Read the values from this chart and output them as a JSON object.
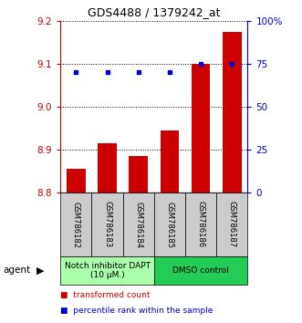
{
  "title": "GDS4488 / 1379242_at",
  "categories": [
    "GSM786182",
    "GSM786183",
    "GSM786184",
    "GSM786185",
    "GSM786186",
    "GSM786187"
  ],
  "bar_values": [
    8.855,
    8.915,
    8.885,
    8.945,
    9.1,
    9.175
  ],
  "dot_values": [
    70,
    70,
    70,
    70,
    75,
    75
  ],
  "ylim_left": [
    8.8,
    9.2
  ],
  "ylim_right": [
    0,
    100
  ],
  "yticks_left": [
    8.8,
    8.9,
    9.0,
    9.1,
    9.2
  ],
  "yticks_right": [
    0,
    25,
    50,
    75,
    100
  ],
  "ytick_labels_right": [
    "0",
    "25",
    "50",
    "75",
    "100%"
  ],
  "bar_color": "#cc0000",
  "dot_color": "#0000cc",
  "groups": [
    {
      "label": "Notch inhibitor DAPT\n(10 μM.)",
      "color": "#aaffaa",
      "indices": [
        0,
        1,
        2
      ]
    },
    {
      "label": "DMSO control",
      "color": "#22cc55",
      "indices": [
        3,
        4,
        5
      ]
    }
  ],
  "legend_items": [
    {
      "label": "transformed count",
      "color": "#cc0000"
    },
    {
      "label": "percentile rank within the sample",
      "color": "#0000cc"
    }
  ],
  "agent_label": "agent",
  "sample_box_color": "#cccccc",
  "grid_linestyle": ":",
  "grid_color": "black"
}
